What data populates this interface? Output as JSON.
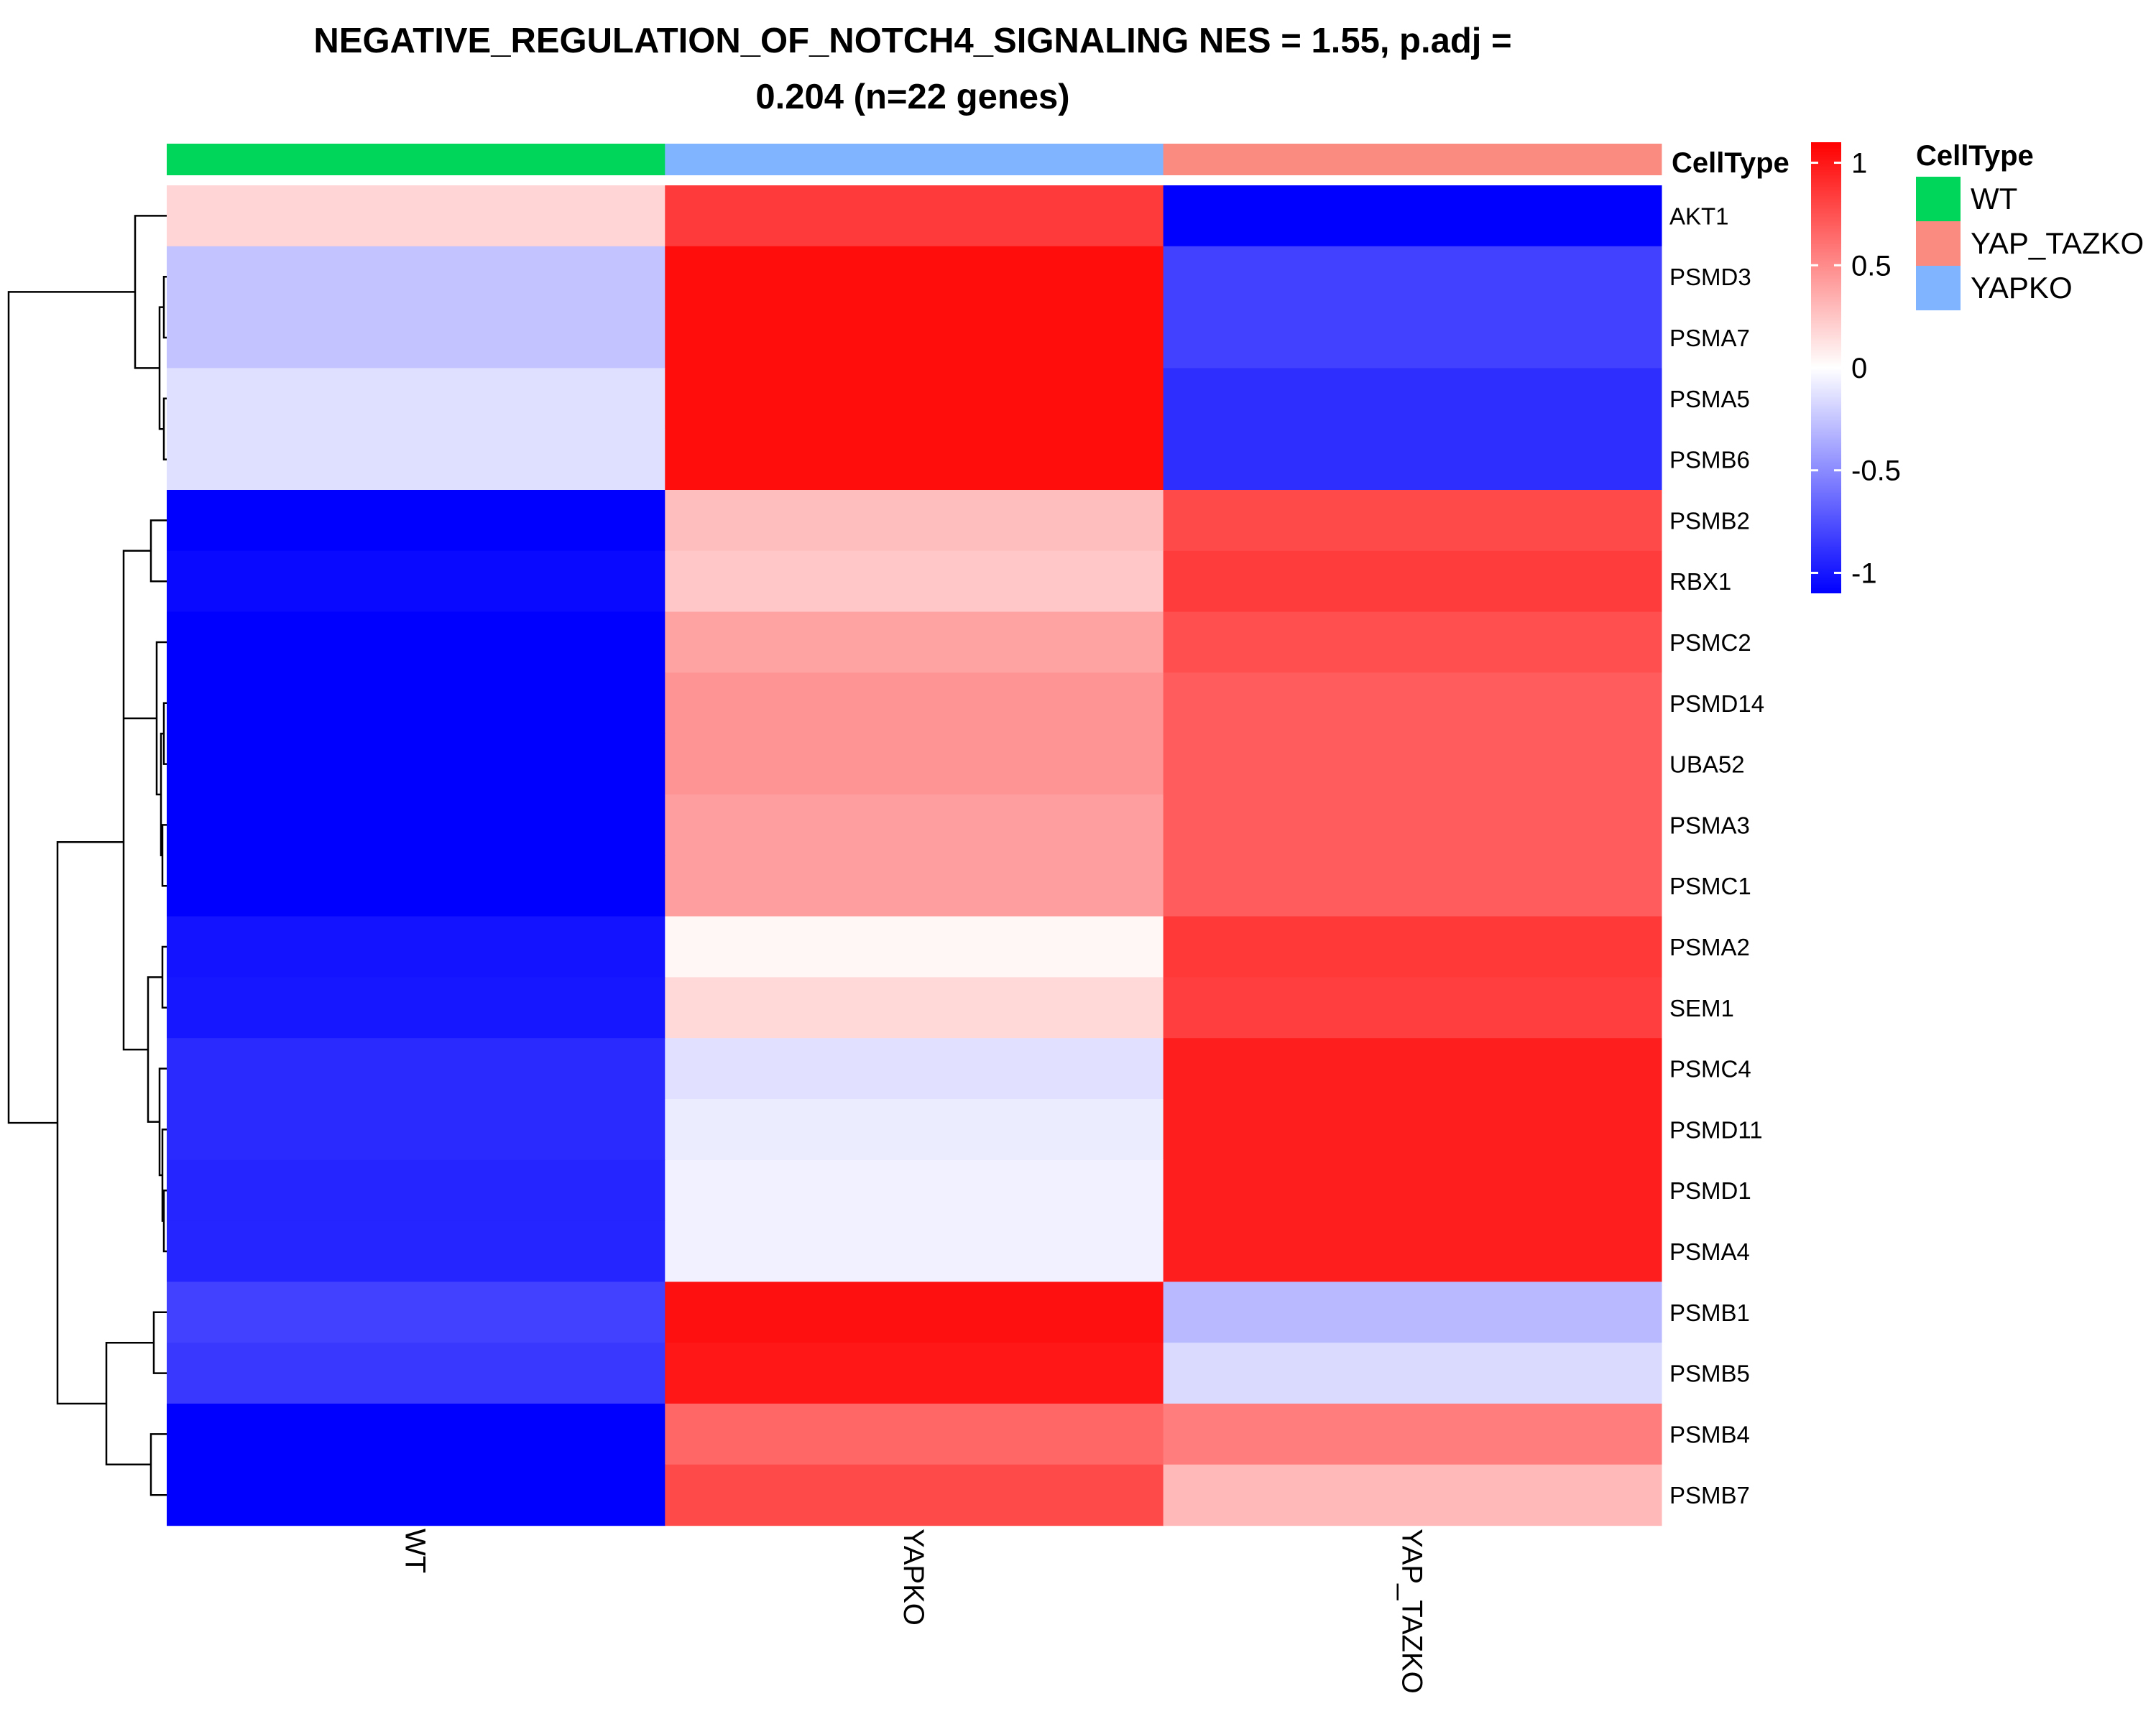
{
  "title": {
    "line1": "NEGATIVE_REGULATION_OF_NOTCH4_SIGNALING NES = 1.55, p.adj =",
    "line2": "0.204 (n=22 genes)"
  },
  "colors": {
    "low": "#0000FF",
    "mid": "#FFFFFF",
    "high": "#FF0000",
    "WT": "#00D65A",
    "YAPKO": "#80B4FF",
    "YAP_TAZKO": "#FA8B80"
  },
  "annotation": {
    "name": "CellType",
    "cells": [
      "WT",
      "YAPKO",
      "YAP_TAZKO"
    ]
  },
  "legend_annotation": {
    "title": "CellType",
    "items": [
      "WT",
      "YAP_TAZKO",
      "YAPKO"
    ]
  },
  "colorbar": {
    "ticks": [
      1,
      0.5,
      0,
      -0.5,
      -1
    ],
    "tick_labels": [
      "1",
      "0.5",
      "0",
      "-0.5",
      "-1"
    ],
    "range": [
      -1.1,
      1.1
    ]
  },
  "chart_data": {
    "type": "heatmap",
    "columns": [
      "WT",
      "YAPKO",
      "YAP_TAZKO"
    ],
    "rows": [
      "AKT1",
      "PSMD3",
      "PSMA7",
      "PSMA5",
      "PSMB6",
      "PSMB2",
      "RBX1",
      "PSMC2",
      "PSMD14",
      "UBA52",
      "PSMA3",
      "PSMC1",
      "PSMA2",
      "SEM1",
      "PSMC4",
      "PSMD11",
      "PSMD1",
      "PSMA4",
      "PSMB1",
      "PSMB5",
      "PSMB4",
      "PSMB7"
    ],
    "values": [
      [
        0.18,
        0.85,
        -1.1
      ],
      [
        -0.26,
        1.05,
        -0.82
      ],
      [
        -0.26,
        1.05,
        -0.82
      ],
      [
        -0.14,
        1.05,
        -0.9
      ],
      [
        -0.14,
        1.05,
        -0.9
      ],
      [
        -1.1,
        0.28,
        0.78
      ],
      [
        -1.06,
        0.24,
        0.84
      ],
      [
        -1.1,
        0.4,
        0.76
      ],
      [
        -1.1,
        0.46,
        0.7
      ],
      [
        -1.1,
        0.46,
        0.7
      ],
      [
        -1.1,
        0.42,
        0.7
      ],
      [
        -1.1,
        0.42,
        0.7
      ],
      [
        -1.02,
        0.04,
        0.86
      ],
      [
        -1.0,
        0.17,
        0.83
      ],
      [
        -0.92,
        -0.13,
        0.97
      ],
      [
        -0.92,
        -0.08,
        0.97
      ],
      [
        -0.94,
        -0.06,
        0.97
      ],
      [
        -0.94,
        -0.06,
        0.97
      ],
      [
        -0.82,
        1.03,
        -0.3
      ],
      [
        -0.86,
        1.0,
        -0.16
      ],
      [
        -1.1,
        0.66,
        0.56
      ],
      [
        -1.1,
        0.78,
        0.3
      ]
    ],
    "column_labels_rotated": true,
    "legend_position": "right"
  }
}
